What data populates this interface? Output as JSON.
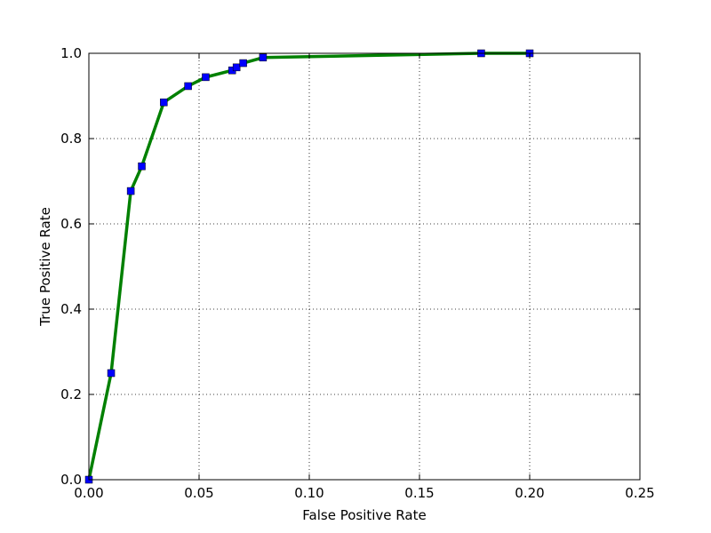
{
  "chart_data": {
    "type": "line",
    "xlabel": "False Positive Rate",
    "ylabel": "True Positive Rate",
    "x": [
      0,
      0.0101,
      0.019,
      0.024,
      0.034,
      0.045,
      0.053,
      0.065,
      0.067,
      0.07,
      0.079,
      0.178,
      0.2
    ],
    "values": [
      0,
      0.25,
      0.677,
      0.735,
      0.885,
      0.923,
      0.944,
      0.96,
      0.967,
      0.977,
      0.99,
      1.0,
      1.0
    ],
    "line_color": "#008000",
    "marker_color": "#0000ff",
    "xlim": [
      0,
      0.25
    ],
    "ylim": [
      0,
      1
    ],
    "xticks": [
      {
        "value": 0,
        "label": "0.00"
      },
      {
        "value": 0.05,
        "label": "0.05"
      },
      {
        "value": 0.1,
        "label": "0.10"
      },
      {
        "value": 0.15,
        "label": "0.15"
      },
      {
        "value": 0.2,
        "label": "0.20"
      },
      {
        "value": 0.25,
        "label": "0.25"
      }
    ],
    "yticks": [
      {
        "value": 0,
        "label": "0.0"
      },
      {
        "value": 0.2,
        "label": "0.2"
      },
      {
        "value": 0.4,
        "label": "0.4"
      },
      {
        "value": 0.6,
        "label": "0.6"
      },
      {
        "value": 0.8,
        "label": "0.8"
      },
      {
        "value": 1,
        "label": "1.0"
      }
    ],
    "grid": true
  }
}
